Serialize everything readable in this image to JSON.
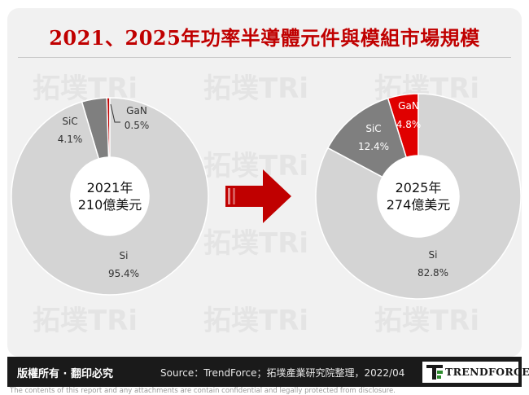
{
  "title": "2021、2025年功率半導體元件與模組市場規模",
  "chart_data": [
    {
      "type": "pie",
      "variant": "donut",
      "center_label": [
        "2021年",
        "210億美元"
      ],
      "categories": [
        "GaN",
        "SiC",
        "Si"
      ],
      "values": [
        0.5,
        4.1,
        95.4
      ],
      "value_labels": [
        "0.5%",
        "4.1%",
        "95.4%"
      ],
      "colors": [
        "#c00000",
        "#7f7f7f",
        "#d4d4d4"
      ]
    },
    {
      "type": "pie",
      "variant": "donut",
      "center_label": [
        "2025年",
        "274億美元"
      ],
      "categories": [
        "GaN",
        "SiC",
        "Si"
      ],
      "values": [
        4.8,
        12.4,
        82.8
      ],
      "value_labels": [
        "4.8%",
        "12.4%",
        "82.8%"
      ],
      "colors": [
        "#e00000",
        "#7f7f7f",
        "#d4d4d4"
      ]
    }
  ],
  "arrow_color": "#c00000",
  "footer": {
    "rights": "版權所有 · 翻印必究",
    "source": "Source：TrendForce；拓墣產業研究院整理，2022/04",
    "logo": "TRENDFORCE"
  },
  "disclaimer": "The contents of this report and any attachments are contain confidential and legally protected from disclosure."
}
